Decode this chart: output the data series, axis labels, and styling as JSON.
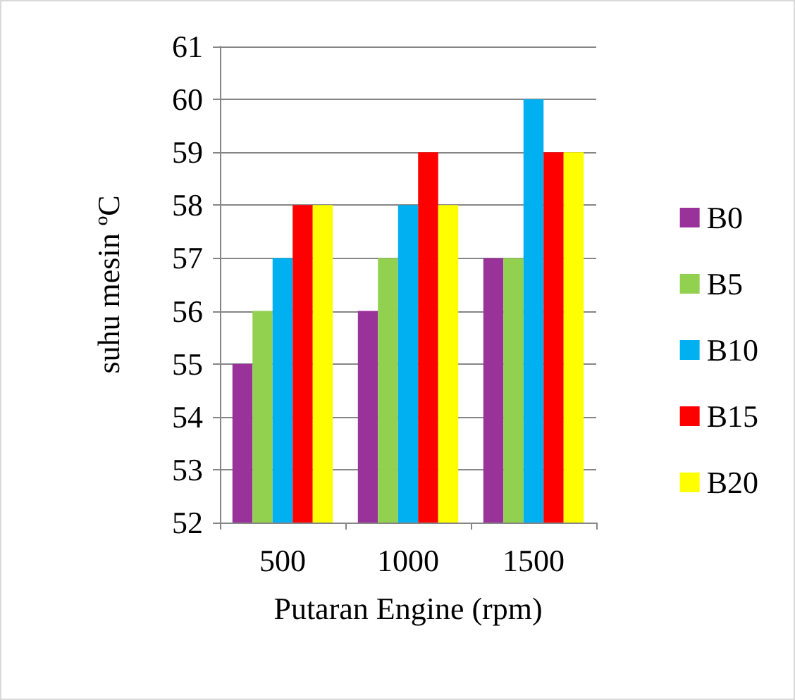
{
  "chart_data": {
    "type": "bar",
    "xlabel": "Putaran Engine (rpm)",
    "ylabel": "suhu mesin ºC",
    "categories": [
      "500",
      "1000",
      "1500"
    ],
    "series": [
      {
        "name": "B0",
        "color": "#993399",
        "values": [
          55,
          56,
          57
        ]
      },
      {
        "name": "B5",
        "color": "#92d050",
        "values": [
          56,
          57,
          57
        ]
      },
      {
        "name": "B10",
        "color": "#00b0f0",
        "values": [
          57,
          58,
          60
        ]
      },
      {
        "name": "B15",
        "color": "#ff0000",
        "values": [
          58,
          59,
          59
        ]
      },
      {
        "name": "B20",
        "color": "#ffff00",
        "values": [
          58,
          58,
          59
        ]
      }
    ],
    "ylim": [
      52,
      61
    ],
    "yticks": [
      52,
      53,
      54,
      55,
      56,
      57,
      58,
      59,
      60,
      61
    ],
    "grid": "y",
    "legend": "right"
  }
}
